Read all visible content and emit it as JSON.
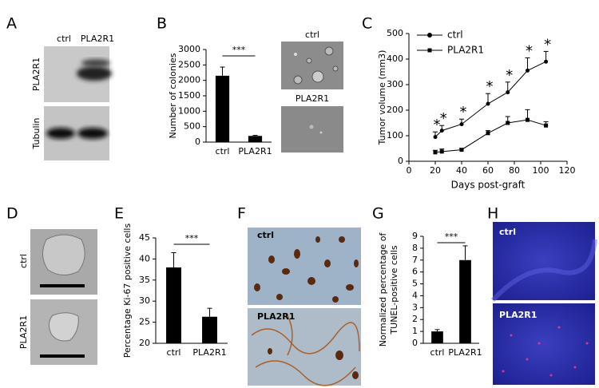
{
  "panels": {
    "letters": [
      "A",
      "B",
      "C",
      "D",
      "E",
      "F",
      "G",
      "H"
    ],
    "A": {
      "columns": [
        "ctrl",
        "PLA2R1"
      ],
      "rows": [
        "PLA2R1",
        "Tubulin"
      ]
    },
    "B": {
      "images": [
        "ctrl",
        "PLA2R1"
      ]
    },
    "D": {
      "images": [
        "ctrl",
        "PLA2R1"
      ]
    },
    "F": {
      "images": [
        "ctrl",
        "PLA2R1"
      ]
    },
    "H": {
      "images": [
        "ctrl",
        "PLA2R1"
      ]
    }
  },
  "chart_data": [
    {
      "type": "bar",
      "ylabel": "Number of colonies",
      "categories": [
        "ctrl",
        "PLA2R1"
      ],
      "values": [
        2150,
        200
      ],
      "errors": [
        280,
        20
      ],
      "color": "#000000",
      "ylim": [
        0,
        3000
      ],
      "yticks": [
        0,
        500,
        1000,
        1500,
        2000,
        2500,
        3000
      ],
      "significance": "***"
    },
    {
      "type": "line",
      "xlabel": "Days post-graft",
      "ylabel": "Tumor volume (mm3)",
      "x": [
        20,
        25,
        40,
        60,
        75,
        90,
        104
      ],
      "series": [
        {
          "name": "ctrl",
          "color": "#000000",
          "marker": "circle",
          "values": [
            95,
            120,
            145,
            225,
            270,
            355,
            390
          ],
          "errors": [
            20,
            20,
            20,
            40,
            40,
            50,
            40
          ]
        },
        {
          "name": "PLA2R1",
          "color": "#000000",
          "marker": "square",
          "values": [
            35,
            38,
            45,
            110,
            150,
            162,
            140
          ],
          "errors": [
            8,
            10,
            5,
            10,
            25,
            40,
            15
          ]
        }
      ],
      "annotations": [
        "*",
        "*",
        "*",
        "*",
        "*",
        "*",
        "*"
      ],
      "xlim": [
        0,
        120
      ],
      "xticks": [
        0,
        20,
        40,
        60,
        80,
        100,
        120
      ],
      "ylim": [
        0,
        500
      ],
      "yticks": [
        0,
        100,
        200,
        300,
        400,
        500
      ],
      "legend": "top-left"
    },
    {
      "type": "bar",
      "ylabel": "Percentage Ki-67 positive cells",
      "categories": [
        "ctrl",
        "PLA2R1"
      ],
      "values": [
        38,
        26.3
      ],
      "errors": [
        3.5,
        2
      ],
      "color": "#000000",
      "ylim": [
        20,
        45
      ],
      "yticks": [
        20,
        25,
        30,
        35,
        40,
        45
      ],
      "significance": "***"
    },
    {
      "type": "bar",
      "ylabel": [
        "Normalized percentage of",
        "TUNEL-positive cells"
      ],
      "categories": [
        "ctrl",
        "PLA2R1"
      ],
      "values": [
        1,
        7
      ],
      "errors": [
        0.15,
        1.2
      ],
      "color": "#000000",
      "ylim": [
        0,
        9
      ],
      "yticks": [
        0,
        1,
        2,
        3,
        4,
        5,
        6,
        7,
        8,
        9
      ],
      "significance": "***"
    }
  ]
}
